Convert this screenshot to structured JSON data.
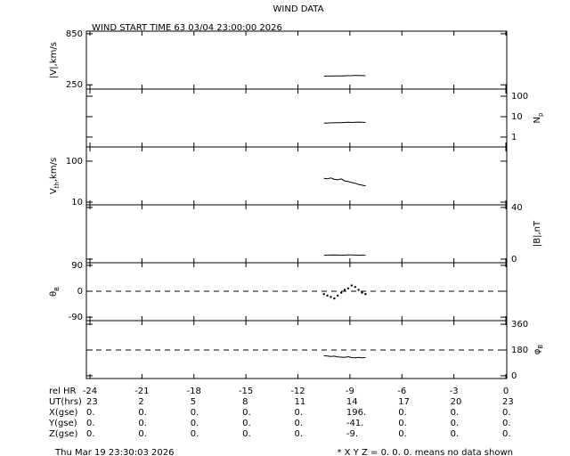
{
  "title": "WIND DATA",
  "subtitle": "WIND START TIME  63 03/04 23:00:00 2026",
  "chart_data": [
    {
      "type": "line",
      "ylabel": [
        "|V|,km/s"
      ],
      "axis_side": "left",
      "log": false,
      "xlim": [
        -24,
        0
      ],
      "ylim": [
        200,
        880
      ],
      "yticks": [
        250,
        850
      ],
      "x": [
        -10.5,
        -10.3,
        -10.1,
        -9.9,
        -9.7,
        -9.5,
        -9.3,
        -9.1,
        -8.9,
        -8.7,
        -8.5,
        -8.3,
        -8.1
      ],
      "values": [
        352,
        353,
        353,
        354,
        355,
        355,
        356,
        357,
        358,
        360,
        359,
        358,
        357
      ]
    },
    {
      "type": "line",
      "ylabel": [
        "N",
        "p"
      ],
      "axis_side": "right",
      "log": true,
      "xlim": [
        -24,
        0
      ],
      "ylim": [
        0.33,
        224
      ],
      "yticks": [
        1,
        10,
        100
      ],
      "x": [
        -10.5,
        -10.3,
        -10.1,
        -9.9,
        -9.7,
        -9.5,
        -9.3,
        -9.1,
        -8.9,
        -8.7,
        -8.5,
        -8.3,
        -8.1
      ],
      "values": [
        4.8,
        4.9,
        5.0,
        5.0,
        5.1,
        5.1,
        5.2,
        5.3,
        5.2,
        5.3,
        5.4,
        5.3,
        5.2
      ]
    },
    {
      "type": "line",
      "ylabel": [
        "V",
        "th",
        ",km/s"
      ],
      "axis_side": "left",
      "log": true,
      "xlim": [
        -24,
        0
      ],
      "ylim": [
        8.6,
        222
      ],
      "yticks": [
        10,
        100
      ],
      "x": [
        -10.5,
        -10.3,
        -10.1,
        -9.9,
        -9.7,
        -9.5,
        -9.3,
        -9.1,
        -8.9,
        -8.7,
        -8.5,
        -8.3,
        -8.1
      ],
      "values": [
        38,
        37,
        39,
        36,
        35,
        37,
        33,
        32,
        30,
        29,
        27,
        26,
        25
      ]
    },
    {
      "type": "line",
      "ylabel": [
        "|B|,nT"
      ],
      "axis_side": "right",
      "log": false,
      "xlim": [
        -24,
        0
      ],
      "ylim": [
        -2.8,
        42
      ],
      "yticks": [
        0,
        40
      ],
      "x": [
        -10.5,
        -10.3,
        -10.1,
        -9.9,
        -9.7,
        -9.5,
        -9.3,
        -9.1,
        -8.9,
        -8.7,
        -8.5,
        -8.3,
        -8.1
      ],
      "values": [
        3.0,
        3.1,
        3.1,
        3.2,
        3.1,
        3.0,
        3.1,
        3.2,
        3.2,
        3.1,
        3.0,
        3.1,
        3.1
      ]
    },
    {
      "type": "scatter",
      "ylabel": [
        "θ",
        "B"
      ],
      "axis_side": "left",
      "log": false,
      "xlim": [
        -24,
        0
      ],
      "ylim": [
        -102,
        99
      ],
      "yticks": [
        -90,
        0,
        90
      ],
      "reference_line": 0,
      "x": [
        -10.5,
        -10.3,
        -10.1,
        -9.9,
        -9.7,
        -9.5,
        -9.3,
        -9.1,
        -8.9,
        -8.7,
        -8.5,
        -8.3,
        -8.1
      ],
      "values": [
        -10,
        -15,
        -20,
        -25,
        -15,
        -5,
        5,
        10,
        20,
        15,
        5,
        -5,
        -10
      ]
    },
    {
      "type": "line",
      "ylabel": [
        "φ",
        "B"
      ],
      "axis_side": "right",
      "log": false,
      "xlim": [
        -24,
        0
      ],
      "ylim": [
        -19,
        385
      ],
      "yticks": [
        0,
        180,
        360
      ],
      "reference_line": 180,
      "x": [
        -10.5,
        -10.3,
        -10.1,
        -9.9,
        -9.7,
        -9.5,
        -9.3,
        -9.1,
        -8.9,
        -8.7,
        -8.5,
        -8.3,
        -8.1
      ],
      "values": [
        140,
        138,
        135,
        137,
        132,
        130,
        128,
        133,
        127,
        125,
        128,
        126,
        127
      ],
      "xlabel": "rel HR",
      "xticks": [
        -24,
        -21,
        -18,
        -15,
        -12,
        -9,
        -6,
        -3,
        0
      ]
    }
  ],
  "table": {
    "rows": [
      {
        "label": "UT(hrs)",
        "values": [
          "23",
          "2",
          "5",
          "8",
          "11",
          "14",
          "17",
          "20",
          "23"
        ]
      },
      {
        "label": "X(gse)",
        "values": [
          "0.",
          "0.",
          "0.",
          "0.",
          "0.",
          "196.",
          "0.",
          "0.",
          "0."
        ]
      },
      {
        "label": "Y(gse)",
        "values": [
          "0.",
          "0.",
          "0.",
          "0.",
          "0.",
          "-41.",
          "0.",
          "0.",
          "0."
        ]
      },
      {
        "label": "Z(gse)",
        "values": [
          "0.",
          "0.",
          "0.",
          "0.",
          "0.",
          "-9.",
          "0.",
          "0.",
          "0."
        ]
      }
    ]
  },
  "footer": {
    "date": "Thu Mar 19 23:30:03 2026",
    "note": "* X Y Z = 0. 0. 0. means no data shown"
  }
}
